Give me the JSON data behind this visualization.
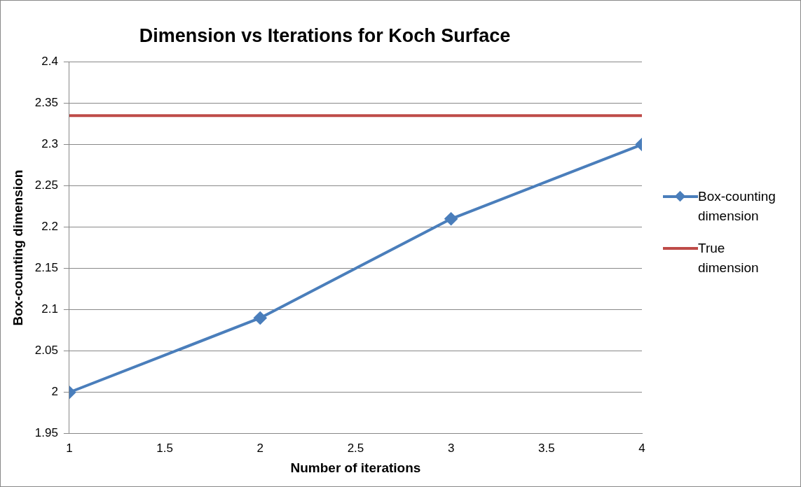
{
  "chart_data": {
    "type": "line",
    "title": "Dimension vs Iterations for Koch Surface",
    "xlabel": "Number of iterations",
    "ylabel": "Box-counting dimension",
    "x": [
      1,
      2,
      3,
      4
    ],
    "series": [
      {
        "name": "Box-counting dimension",
        "color": "#4a7ebb",
        "values": [
          2,
          2.09,
          2.21,
          2.3
        ],
        "marker": "diamond"
      },
      {
        "name": "True dimension",
        "color": "#be4b48",
        "x": [
          1,
          4
        ],
        "values": [
          2.335,
          2.335
        ],
        "marker": "none"
      }
    ],
    "xlim": [
      1,
      4
    ],
    "xticks": [
      1,
      1.5,
      2,
      2.5,
      3,
      3.5,
      4
    ],
    "ylim": [
      1.95,
      2.4
    ],
    "yticks": [
      1.95,
      2,
      2.05,
      2.1,
      2.15,
      2.2,
      2.25,
      2.3,
      2.35,
      2.4
    ],
    "grid": "y",
    "legend": "right",
    "line_style": "solid"
  }
}
